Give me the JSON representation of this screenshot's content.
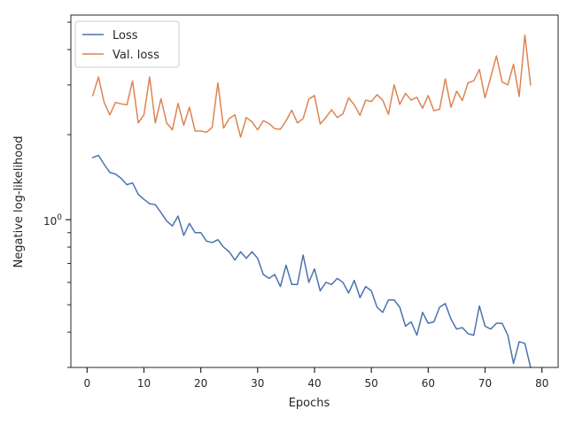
{
  "chart_data": {
    "type": "line",
    "title": "",
    "xlabel": "Epochs",
    "ylabel": "Negative log-likelihood",
    "xlim": [
      -2.85,
      82.85
    ],
    "ylim": [
      0.3,
      5.3
    ],
    "y_scale": "log",
    "x_ticks": [
      0,
      10,
      20,
      30,
      40,
      50,
      60,
      70,
      80
    ],
    "y_major_ticks": [
      1.0
    ],
    "y_major_tick_labels": [
      "10^0"
    ],
    "y_minor_ticks": [
      0.3,
      0.4,
      0.5,
      0.6,
      0.7,
      0.8,
      0.9,
      2,
      3,
      4,
      5
    ],
    "legend_position": "top-left",
    "grid": false,
    "x": [
      1,
      2,
      3,
      4,
      5,
      6,
      7,
      8,
      9,
      10,
      11,
      12,
      13,
      14,
      15,
      16,
      17,
      18,
      19,
      20,
      21,
      22,
      23,
      24,
      25,
      26,
      27,
      28,
      29,
      30,
      31,
      32,
      33,
      34,
      35,
      36,
      37,
      38,
      39,
      40,
      41,
      42,
      43,
      44,
      45,
      46,
      47,
      48,
      49,
      50,
      51,
      52,
      53,
      54,
      55,
      56,
      57,
      58,
      59,
      60,
      61,
      62,
      63,
      64,
      65,
      66,
      67,
      68,
      69,
      70,
      71,
      72,
      73,
      74,
      75,
      76,
      77,
      78
    ],
    "series": [
      {
        "name": "Loss",
        "color": "#4c72b0",
        "values": [
          1.66,
          1.69,
          1.57,
          1.47,
          1.45,
          1.4,
          1.33,
          1.35,
          1.23,
          1.18,
          1.14,
          1.13,
          1.06,
          0.99,
          0.95,
          1.03,
          0.88,
          0.97,
          0.9,
          0.9,
          0.84,
          0.83,
          0.85,
          0.8,
          0.77,
          0.72,
          0.77,
          0.73,
          0.77,
          0.73,
          0.64,
          0.62,
          0.64,
          0.58,
          0.69,
          0.59,
          0.59,
          0.75,
          0.6,
          0.67,
          0.56,
          0.6,
          0.59,
          0.62,
          0.6,
          0.55,
          0.61,
          0.53,
          0.58,
          0.56,
          0.49,
          0.47,
          0.52,
          0.52,
          0.49,
          0.42,
          0.435,
          0.39,
          0.47,
          0.43,
          0.435,
          0.49,
          0.505,
          0.445,
          0.41,
          0.415,
          0.395,
          0.39,
          0.495,
          0.42,
          0.41,
          0.43,
          0.43,
          0.39,
          0.31,
          0.37,
          0.365,
          0.3
        ]
      },
      {
        "name": "Val. loss",
        "color": "#dd8452",
        "values": [
          2.75,
          3.2,
          2.6,
          2.35,
          2.6,
          2.57,
          2.55,
          3.1,
          2.2,
          2.35,
          3.2,
          2.2,
          2.68,
          2.2,
          2.08,
          2.58,
          2.16,
          2.5,
          2.06,
          2.06,
          2.04,
          2.12,
          3.05,
          2.11,
          2.28,
          2.35,
          1.96,
          2.3,
          2.22,
          2.08,
          2.24,
          2.19,
          2.1,
          2.09,
          2.24,
          2.44,
          2.2,
          2.28,
          2.67,
          2.75,
          2.18,
          2.3,
          2.45,
          2.3,
          2.37,
          2.7,
          2.55,
          2.34,
          2.65,
          2.62,
          2.77,
          2.65,
          2.36,
          3.0,
          2.56,
          2.8,
          2.65,
          2.71,
          2.48,
          2.75,
          2.43,
          2.46,
          3.15,
          2.5,
          2.85,
          2.64,
          3.05,
          3.1,
          3.4,
          2.7,
          3.2,
          3.8,
          3.07,
          3.0,
          3.55,
          2.73,
          4.5,
          3.0
        ]
      }
    ]
  }
}
